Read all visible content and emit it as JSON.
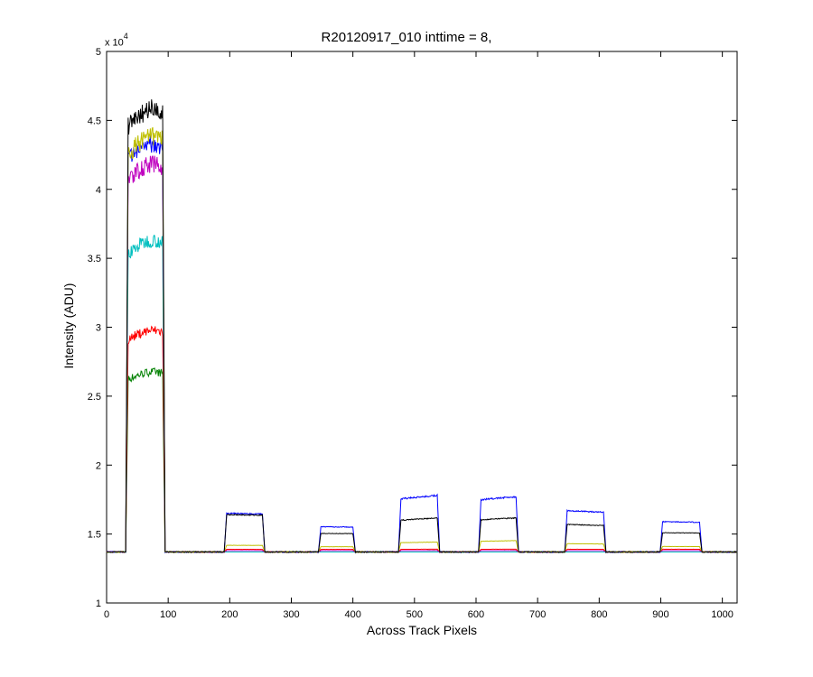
{
  "chart_data": {
    "type": "line",
    "title": "R20120917_010 inttime = 8,",
    "xlabel": "Across Track Pixels",
    "ylabel": "Intensity (ADU)",
    "y_multiplier": {
      "base": "x 10",
      "exponent": "4"
    },
    "xlim": [
      0,
      1024
    ],
    "ylim": [
      1,
      5
    ],
    "xticks": [
      0,
      100,
      200,
      300,
      400,
      500,
      600,
      700,
      800,
      900,
      1000
    ],
    "yticks": [
      1,
      1.5,
      2,
      2.5,
      3,
      3.5,
      4,
      4.5,
      5
    ],
    "ytick_labels": [
      "1",
      "1.5",
      "2",
      "2.5",
      "3",
      "3.5",
      "4",
      "4.5",
      "5"
    ],
    "baseline": 1.37,
    "segments": [
      {
        "x0": 32,
        "x1": 94,
        "left": 0.93,
        "right": 0.93,
        "peak_at": 75,
        "peak_gain": 1.08
      },
      {
        "x0": 192,
        "x1": 256,
        "left": 0.97,
        "right": 0.95
      },
      {
        "x0": 345,
        "x1": 403,
        "left": 0.96,
        "right": 0.95
      },
      {
        "x0": 475,
        "x1": 540,
        "left": 0.96,
        "right": 1.03
      },
      {
        "x0": 605,
        "x1": 668,
        "left": 0.97,
        "right": 1.03
      },
      {
        "x0": 745,
        "x1": 810,
        "left": 1.0,
        "right": 0.96
      },
      {
        "x0": 900,
        "x1": 966,
        "left": 1.0,
        "right": 0.98
      }
    ],
    "series": [
      {
        "color": "#000000",
        "lift": [
          3.2,
          0.28,
          0.14,
          0.24,
          0.24,
          0.2,
          0.14
        ]
      },
      {
        "color": "#bfbf00",
        "lift": [
          3.0,
          0.05,
          0.04,
          0.07,
          0.08,
          0.06,
          0.04
        ]
      },
      {
        "color": "#0000ff",
        "lift": [
          2.95,
          0.29,
          0.19,
          0.4,
          0.39,
          0.3,
          0.22
        ]
      },
      {
        "color": "#bf00bf",
        "lift": [
          2.8,
          0.01,
          0.01,
          0.01,
          0.01,
          0.01,
          0.01
        ]
      },
      {
        "color": "#00bfbf",
        "lift": [
          2.25,
          0.0,
          0.0,
          0.0,
          0.0,
          0.0,
          0.0
        ]
      },
      {
        "color": "#ff0000",
        "lift": [
          1.6,
          0.02,
          0.02,
          0.02,
          0.02,
          0.02,
          0.02
        ]
      },
      {
        "color": "#008000",
        "lift": [
          1.3,
          0.01,
          0.01,
          0.01,
          0.01,
          0.01,
          0.01
        ]
      }
    ]
  }
}
